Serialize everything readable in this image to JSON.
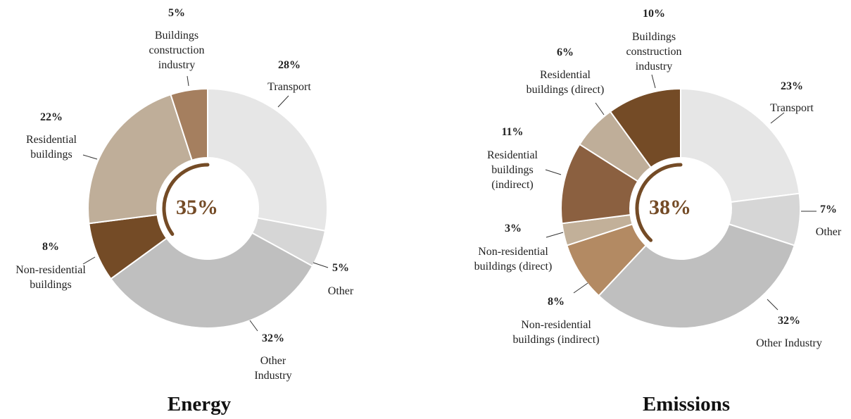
{
  "chart_data": [
    {
      "type": "pie",
      "title": "Energy",
      "center_value": 35,
      "center_label": "35%",
      "categories": [
        "Transport",
        "Other",
        "Other Industry",
        "Non-residential buildings",
        "Residential buildings",
        "Buildings construction industry"
      ],
      "values": [
        28,
        5,
        32,
        8,
        22,
        5
      ],
      "value_labels": [
        "28%",
        "5%",
        "32%",
        "8%",
        "22%",
        "5%"
      ],
      "colors": [
        "#e6e6e6",
        "#d6d6d6",
        "#bfbfbf",
        "#744b26",
        "#bfae99",
        "#a57f5f"
      ]
    },
    {
      "type": "pie",
      "title": "Emissions",
      "center_value": 38,
      "center_label": "38%",
      "categories": [
        "Transport",
        "Other",
        "Other Industry",
        "Non-residential buildings (indirect)",
        "Non-residential buildings (direct)",
        "Residential buildings (indirect)",
        "Residential buildings (direct)",
        "Buildings construction industry"
      ],
      "values": [
        23,
        7,
        32,
        8,
        3,
        11,
        6,
        10
      ],
      "value_labels": [
        "23%",
        "7%",
        "32%",
        "8%",
        "3%",
        "11%",
        "6%",
        "10%"
      ],
      "colors": [
        "#e6e6e6",
        "#d6d6d6",
        "#bfbfbf",
        "#b38a63",
        "#c2b099",
        "#8b6040",
        "#bfae99",
        "#744b26"
      ]
    }
  ]
}
